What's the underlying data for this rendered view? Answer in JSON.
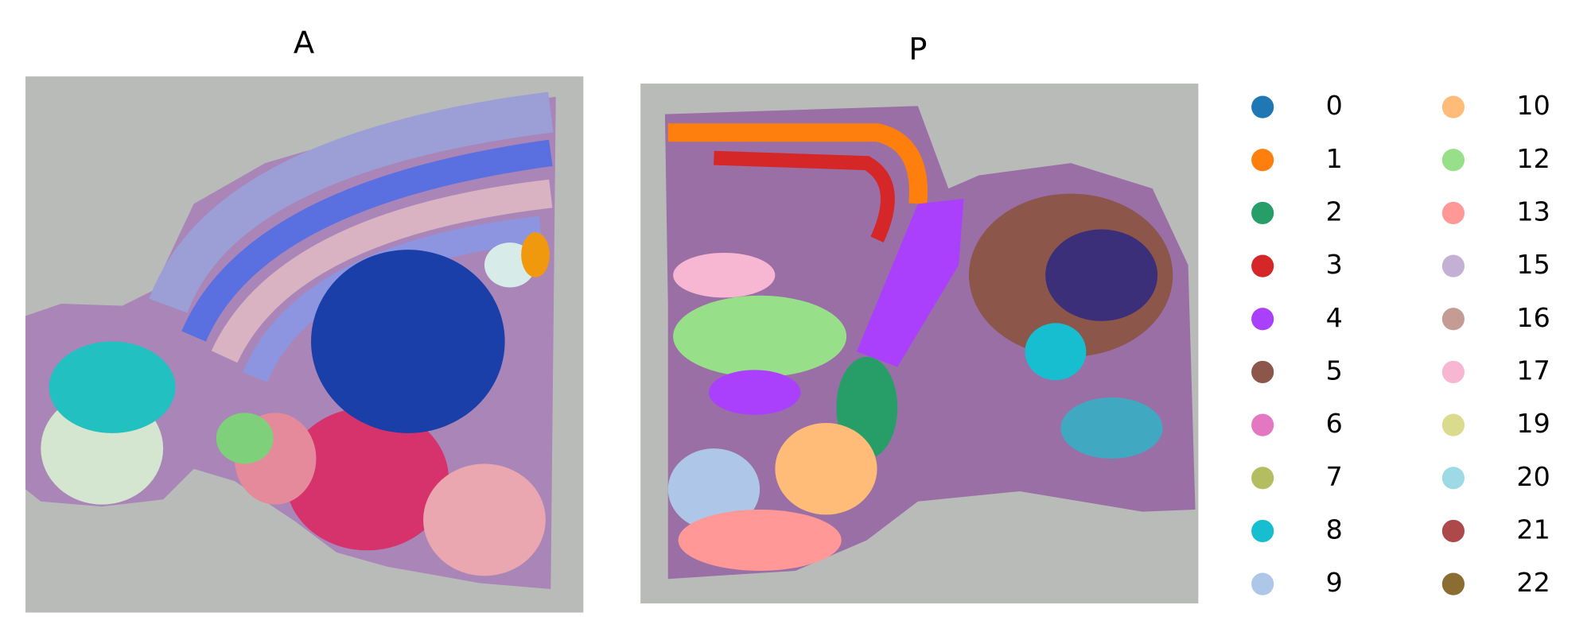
{
  "panels": [
    {
      "title": "A"
    },
    {
      "title": "P"
    }
  ],
  "legend": [
    {
      "label": "0",
      "color": "#1f77b4"
    },
    {
      "label": "1",
      "color": "#ff7f0e"
    },
    {
      "label": "2",
      "color": "#279e68"
    },
    {
      "label": "3",
      "color": "#d62728"
    },
    {
      "label": "4",
      "color": "#aa40fc"
    },
    {
      "label": "5",
      "color": "#8c564b"
    },
    {
      "label": "6",
      "color": "#e377c2"
    },
    {
      "label": "7",
      "color": "#b5bd61"
    },
    {
      "label": "8",
      "color": "#17becf"
    },
    {
      "label": "9",
      "color": "#aec7e8"
    },
    {
      "label": "10",
      "color": "#ffbb78"
    },
    {
      "label": "12",
      "color": "#98df8a"
    },
    {
      "label": "13",
      "color": "#ff9896"
    },
    {
      "label": "15",
      "color": "#c5b0d5"
    },
    {
      "label": "16",
      "color": "#c49c94"
    },
    {
      "label": "17",
      "color": "#f7b6d2"
    },
    {
      "label": "19",
      "color": "#dbdb8d"
    },
    {
      "label": "20",
      "color": "#9edae5"
    },
    {
      "label": "21",
      "color": "#ad494a"
    },
    {
      "label": "22",
      "color": "#8c6d31"
    }
  ]
}
